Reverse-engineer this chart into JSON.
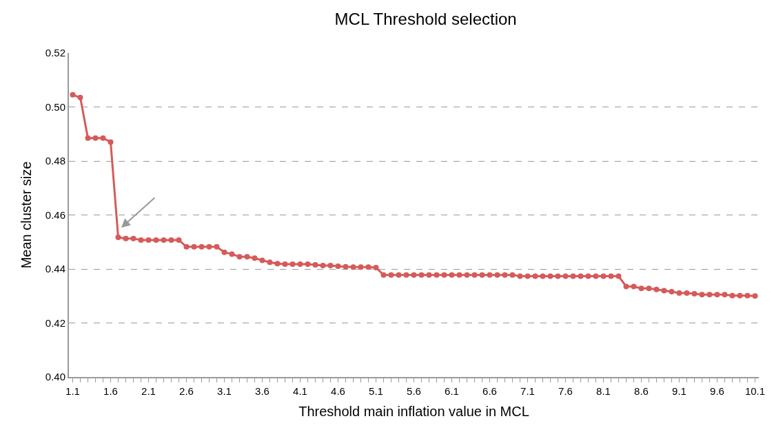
{
  "chart_data": {
    "type": "line",
    "title": "MCL Threshold selection",
    "xlabel": "Threshold main inflation value in MCL",
    "ylabel": "Mean cluster size",
    "categories": [
      "1.1",
      null,
      null,
      null,
      null,
      "1.6",
      null,
      null,
      null,
      null,
      "2.1",
      null,
      null,
      null,
      null,
      "2.6",
      null,
      null,
      null,
      null,
      "3.1",
      null,
      null,
      null,
      null,
      "3.6",
      null,
      null,
      null,
      null,
      "4.1",
      null,
      null,
      null,
      null,
      "4.6",
      null,
      null,
      null,
      null,
      "5.1",
      null,
      null,
      null,
      null,
      "5.6",
      null,
      null,
      null,
      null,
      "6.1",
      null,
      null,
      null,
      null,
      "6.6",
      null,
      null,
      null,
      null,
      "7.1",
      null,
      null,
      null,
      null,
      "7.6",
      null,
      null,
      null,
      null,
      "8.1",
      null,
      null,
      null,
      null,
      "8.6",
      null,
      null,
      null,
      null,
      "9.1",
      null,
      null,
      null,
      null,
      "9.6",
      null,
      null,
      null,
      null,
      "10.1"
    ],
    "series": [
      {
        "color": "#d65a5a",
        "values": [
          0.5045,
          0.5035,
          0.4885,
          0.4885,
          0.4885,
          0.487,
          0.4517,
          0.4513,
          0.4513,
          0.4507,
          0.4507,
          0.4507,
          0.4507,
          0.4507,
          0.4507,
          0.4482,
          0.4482,
          0.4482,
          0.4482,
          0.4482,
          0.4462,
          0.4455,
          0.4445,
          0.4445,
          0.444,
          0.4432,
          0.4425,
          0.442,
          0.4418,
          0.4418,
          0.4418,
          0.4418,
          0.4415,
          0.4413,
          0.4413,
          0.441,
          0.4408,
          0.4407,
          0.4407,
          0.4407,
          0.4405,
          0.4378,
          0.4378,
          0.4378,
          0.4378,
          0.4378,
          0.4378,
          0.4378,
          0.4378,
          0.4378,
          0.4378,
          0.4378,
          0.4378,
          0.4378,
          0.4378,
          0.4378,
          0.4378,
          0.4378,
          0.4378,
          0.4373,
          0.4373,
          0.4373,
          0.4373,
          0.4373,
          0.4373,
          0.4373,
          0.4373,
          0.4373,
          0.4373,
          0.4373,
          0.4373,
          0.4373,
          0.4373,
          0.4335,
          0.4335,
          0.4328,
          0.4328,
          0.4324,
          0.432,
          0.4316,
          0.4311,
          0.4311,
          0.4308,
          0.4305,
          0.4305,
          0.4305,
          0.4305,
          0.4301,
          0.4301,
          0.4301,
          0.43
        ]
      }
    ],
    "ylim": [
      0.4,
      0.52
    ],
    "yticks": [
      {
        "value": 0.4,
        "label": "0.40"
      },
      {
        "value": 0.42,
        "label": "0.42"
      },
      {
        "value": 0.44,
        "label": "0.44"
      },
      {
        "value": 0.46,
        "label": "0.46"
      },
      {
        "value": 0.48,
        "label": "0.48"
      },
      {
        "value": 0.5,
        "label": "0.50"
      },
      {
        "value": 0.52,
        "label": "0.52"
      }
    ],
    "grid": "y",
    "marker": "circle",
    "line_style": "solid"
  }
}
